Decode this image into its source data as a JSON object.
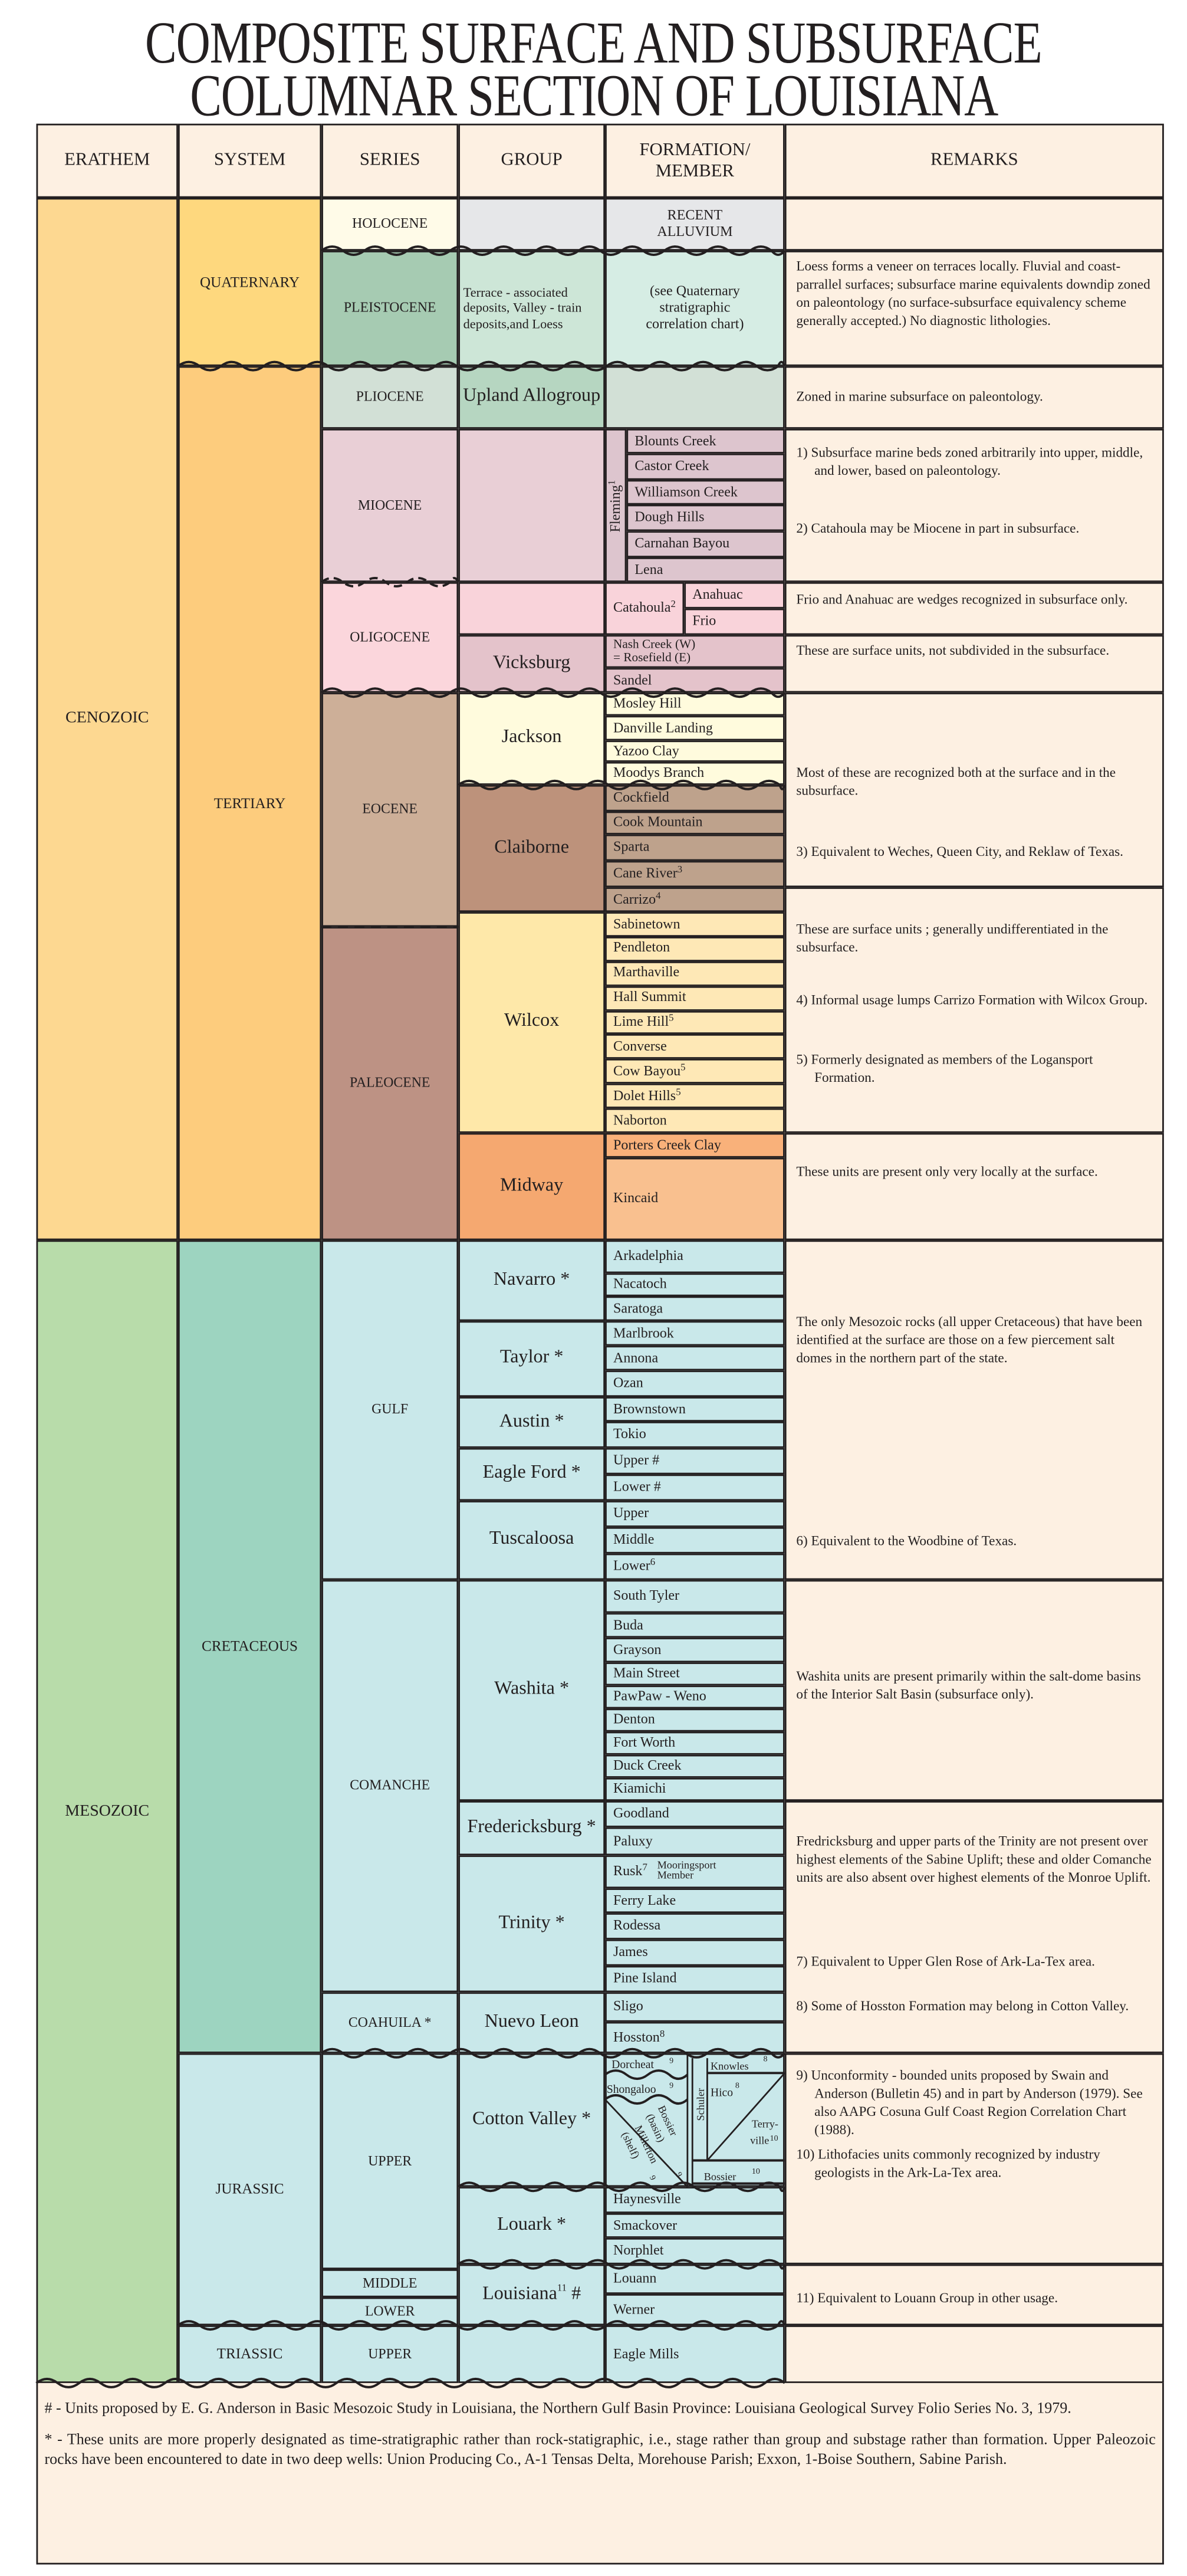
{
  "title": [
    "COMPOSITE SURFACE AND SUBSURFACE",
    "COLUMNAR SECTION OF LOUISIANA"
  ],
  "headers": [
    "ERATHEM",
    "SYSTEM",
    "SERIES",
    "GROUP",
    "FORMATION/\nMEMBER",
    "REMARKS"
  ],
  "erathem": [
    {
      "label": "CENOZOIC",
      "color": "#fdd891"
    },
    {
      "label": "MESOZOIC",
      "color": "#b8dcaa"
    }
  ],
  "system": [
    {
      "label": "QUATERNARY",
      "color": "#fed87e"
    },
    {
      "label": "TERTIARY",
      "color": "#fdcc7d"
    },
    {
      "label": "CRETACEOUS",
      "color": "#9dd4c0"
    },
    {
      "label": "JURASSIC",
      "color": "#c9e8ea"
    },
    {
      "label": "TRIASSIC",
      "color": "#c9e8ea"
    }
  ],
  "series": [
    {
      "label": "HOLOCENE",
      "color": "#fffbe8"
    },
    {
      "label": "PLEISTOCENE",
      "color": "#a6cbb2"
    },
    {
      "label": "PLIOCENE",
      "color": "#d2e0d6"
    },
    {
      "label": "MIOCENE",
      "color": "#e9cfd6"
    },
    {
      "label": "OLIGOCENE",
      "color": "#fbd6dc"
    },
    {
      "label": "EOCENE",
      "color": "#cdaf98"
    },
    {
      "label": "PALEOCENE",
      "color": "#bd9284"
    },
    {
      "label": "GULF",
      "color": "#c9e8ea"
    },
    {
      "label": "COMANCHE",
      "color": "#c9e8ea"
    },
    {
      "label": "COAHUILA *",
      "color": "#c9e8ea"
    },
    {
      "label": "UPPER",
      "color": "#c9e8ea"
    },
    {
      "label": "MIDDLE",
      "color": "#c9e8ea"
    },
    {
      "label": "LOWER",
      "color": "#c9e8ea"
    },
    {
      "label": "UPPER",
      "color": "#c9e8ea"
    }
  ],
  "group": [
    {
      "label": "",
      "color": "#e6e7e9"
    },
    {
      "label": "Terrace - associated deposits, Valley - train deposits,and Loess",
      "color": "#cde6d7"
    },
    {
      "label": "Upland Allogroup",
      "color": "#b6d6c1"
    },
    {
      "label": "",
      "color": "#e9cfd6"
    },
    {
      "label": "",
      "color": "#f9d3da"
    },
    {
      "label": "Vicksburg",
      "color": "#e4c3cb"
    },
    {
      "label": "Jackson",
      "color": "#fffbdd"
    },
    {
      "label": "Claiborne",
      "color": "#bd927b"
    },
    {
      "label": "Wilcox",
      "color": "#fee8a9"
    },
    {
      "label": "Midway",
      "color": "#f5a870"
    },
    {
      "label": "Navarro *",
      "color": "#c9e8ea"
    },
    {
      "label": "Taylor *",
      "color": "#c9e8ea"
    },
    {
      "label": "Austin *",
      "color": "#c9e8ea"
    },
    {
      "label": "Eagle Ford *",
      "color": "#c9e8ea"
    },
    {
      "label": "Tuscaloosa",
      "color": "#c9e8ea"
    },
    {
      "label": "Washita *",
      "color": "#c9e8ea"
    },
    {
      "label": "Fredericksburg *",
      "color": "#c9e8ea"
    },
    {
      "label": "Trinity *",
      "color": "#c9e8ea"
    },
    {
      "label": "Nuevo Leon",
      "color": "#c9e8ea"
    },
    {
      "label": "Cotton Valley *",
      "color": "#c9e8ea"
    },
    {
      "label": "Louark *",
      "color": "#c9e8ea"
    },
    {
      "label": "Louisiana",
      "sup": "11",
      "suffix": " #",
      "color": "#c9e8ea"
    },
    {
      "label": "",
      "color": "#c9e8ea"
    }
  ],
  "formation": [
    {
      "label": "RECENT\nALLUVIUM",
      "color": "#e6e7e9"
    },
    {
      "label": "(see Quaternary\nstratigraphic\ncorrelation chart)",
      "color": "#d6ede4"
    },
    {
      "label": "",
      "color": "#d2e0d6"
    },
    {
      "label": "Fleming",
      "sup": "1",
      "color": "#ddc5ce"
    },
    {
      "label": "Blounts Creek",
      "color": "#ddc5ce"
    },
    {
      "label": "Castor Creek",
      "color": "#ddc5ce"
    },
    {
      "label": "Williamson Creek",
      "color": "#ddc5ce"
    },
    {
      "label": "Dough Hills",
      "color": "#ddc5ce"
    },
    {
      "label": "Carnahan Bayou",
      "color": "#ddc5ce"
    },
    {
      "label": "Lena",
      "color": "#ddc5ce"
    },
    {
      "label": "Catahoula",
      "sup": "2",
      "color": "#f9d3da"
    },
    {
      "label": "Anahuac",
      "color": "#f9d3da"
    },
    {
      "label": "Frio",
      "color": "#f9d3da"
    },
    {
      "label": "Nash Creek (W)\n= Rosefield (E)",
      "color": "#e4c3cb"
    },
    {
      "label": "Sandel",
      "color": "#e4c3cb"
    },
    {
      "label": "Mosley Hill",
      "color": "#fffbdd"
    },
    {
      "label": "Danville Landing",
      "color": "#fffbdd"
    },
    {
      "label": "Yazoo Clay",
      "color": "#fffbdd"
    },
    {
      "label": "Moodys Branch",
      "color": "#fffbdd"
    },
    {
      "label": "Cockfield",
      "color": "#bea28c"
    },
    {
      "label": "Cook Mountain",
      "color": "#bea28c"
    },
    {
      "label": "Sparta",
      "color": "#bea28c"
    },
    {
      "label": "Cane River",
      "sup": "3",
      "color": "#bea28c"
    },
    {
      "label": "Carrizo",
      "sup": "4",
      "color": "#bea28c"
    },
    {
      "label": "Sabinetown",
      "color": "#fee8b6"
    },
    {
      "label": "Pendleton",
      "color": "#fee8b6"
    },
    {
      "label": "Marthaville",
      "color": "#fee8b6"
    },
    {
      "label": "Hall Summit",
      "color": "#fee8b6"
    },
    {
      "label": "Lime Hill",
      "sup": "5",
      "color": "#fee8b6"
    },
    {
      "label": "Converse",
      "color": "#fee8b6"
    },
    {
      "label": "Cow  Bayou",
      "sup": "5",
      "color": "#fee8b6"
    },
    {
      "label": "Dolet Hills",
      "sup": "5",
      "color": "#fee8b6"
    },
    {
      "label": "Naborton",
      "color": "#fee8b6"
    },
    {
      "label": "Porters Creek Clay",
      "color": "#f9b17a"
    },
    {
      "label": "Kincaid",
      "color": "#f9c08f"
    },
    {
      "label": "Arkadelphia",
      "color": "#c9e8ea"
    },
    {
      "label": "Nacatoch",
      "color": "#c9e8ea"
    },
    {
      "label": "Saratoga",
      "color": "#c9e8ea"
    },
    {
      "label": "Marlbrook",
      "color": "#c9e8ea"
    },
    {
      "label": "Annona",
      "color": "#c9e8ea"
    },
    {
      "label": "Ozan",
      "color": "#c9e8ea"
    },
    {
      "label": "Brownstown",
      "color": "#c9e8ea"
    },
    {
      "label": "Tokio",
      "color": "#c9e8ea"
    },
    {
      "label": "Upper #",
      "color": "#c9e8ea"
    },
    {
      "label": "Lower #",
      "color": "#c9e8ea"
    },
    {
      "label": "Upper",
      "color": "#c9e8ea"
    },
    {
      "label": "Middle",
      "color": "#c9e8ea"
    },
    {
      "label": "Lower",
      "sup": "6",
      "color": "#c9e8ea"
    },
    {
      "label": "South Tyler",
      "color": "#c9e8ea"
    },
    {
      "label": "Buda",
      "color": "#c9e8ea"
    },
    {
      "label": "Grayson",
      "color": "#c9e8ea"
    },
    {
      "label": "Main Street",
      "color": "#c9e8ea"
    },
    {
      "label": "PawPaw - Weno",
      "color": "#c9e8ea"
    },
    {
      "label": "Denton",
      "color": "#c9e8ea"
    },
    {
      "label": "Fort Worth",
      "color": "#c9e8ea"
    },
    {
      "label": "Duck Creek",
      "color": "#c9e8ea"
    },
    {
      "label": "Kiamichi",
      "color": "#c9e8ea"
    },
    {
      "label": "Goodland",
      "color": "#c9e8ea"
    },
    {
      "label": "Paluxy",
      "color": "#c9e8ea"
    },
    {
      "label": "Rusk",
      "sup": "7",
      "note": "Mooringsport\nMember",
      "color": "#c9e8ea"
    },
    {
      "label": "Ferry Lake",
      "color": "#c9e8ea"
    },
    {
      "label": "Rodessa",
      "color": "#c9e8ea"
    },
    {
      "label": "James",
      "color": "#c9e8ea"
    },
    {
      "label": "Pine Island",
      "color": "#c9e8ea"
    },
    {
      "label": "Sligo",
      "color": "#c9e8ea"
    },
    {
      "label": "Hosston",
      "sup": "8",
      "color": "#c9e8ea"
    },
    {
      "label": "Haynesville",
      "color": "#c9e8ea"
    },
    {
      "label": "Smackover",
      "color": "#c9e8ea"
    },
    {
      "label": "Norphlet",
      "color": "#c9e8ea"
    },
    {
      "label": "Louann",
      "color": "#c9e8ea"
    },
    {
      "label": "Werner",
      "color": "#c9e8ea"
    },
    {
      "label": "Eagle Mills",
      "color": "#c9e8ea"
    }
  ],
  "cotton_valley": {
    "color": "#c9e8ea",
    "dorcheat": "Dorcheat",
    "dorcheat_sup": "9",
    "shongaloo": "Shongaloo",
    "shongaloo_sup": "9",
    "bossier_basin": "Bossier",
    "bossier_basin_2": "(basin)",
    "bossier_basin_sup": "9",
    "millerton": "Millerton",
    "millerton_2": "(shelf)",
    "millerton_sup": "9",
    "schuler": "Schuler",
    "knowles": "Knowles",
    "knowles_sup": "8",
    "hico": "Hico",
    "hico_sup": "8",
    "terryville_1": "Terry-",
    "terryville_2": "ville",
    "terryville_sup": "10",
    "bossier": "Bossier",
    "bossier_sup": "10"
  },
  "remarks": [
    {
      "paragraphs": []
    },
    {
      "paragraphs": [
        "Loess forms a veneer on terraces locally. Fluvial and coast-parrallel surfaces; subsurface marine equivalents downdip zoned on paleontology (no surface-subsurface equivalency scheme generally accepted.) No diagnostic lithologies."
      ]
    },
    {
      "paragraphs": [
        "Zoned in marine subsurface on paleontology."
      ]
    },
    {
      "paragraphs": [
        "1) Subsurface marine beds zoned arbitrarily into upper, middle, and lower, based on paleontology.",
        "2) Catahoula may be Miocene in part in subsurface."
      ]
    },
    {
      "paragraphs": [
        "Frio and Anahuac are wedges recognized in subsurface only."
      ]
    },
    {
      "paragraphs": [
        "These are surface units, not subdivided in the subsurface."
      ]
    },
    {
      "paragraphs": [
        "Most of these are recognized both at the surface and in the subsurface.",
        "3) Equivalent to Weches, Queen City, and Reklaw of Texas."
      ]
    },
    {
      "paragraphs": [
        "These are surface units ; generally undifferentiated in the subsurface.",
        "4) Informal usage lumps Carrizo Formation with Wilcox Group.",
        "5) Formerly designated as members of the Logansport Formation."
      ]
    },
    {
      "paragraphs": [
        "These units are present only very locally at the surface."
      ]
    },
    {
      "paragraphs": [
        "The only Mesozoic rocks (all upper Cretaceous) that have been identified at the surface are those on a few piercement salt domes in the northern part of the state.",
        "6) Equivalent to the Woodbine of Texas."
      ]
    },
    {
      "paragraphs": [
        "Washita units are present primarily within the salt-dome basins of the Interior Salt Basin (subsurface only)."
      ]
    },
    {
      "paragraphs": [
        "Fredricksburg and upper parts of the Trinity are not present over highest elements of the Sabine Uplift; these and older Comanche units are also absent over highest elements of the Monroe Uplift.",
        "7) Equivalent to Upper Glen Rose of Ark-La-Tex area.",
        "8) Some of Hosston Formation may belong in Cotton Valley."
      ]
    },
    {
      "paragraphs": [
        "9) Unconformity - bounded units proposed by Swain and Anderson (Bulletin 45) and in part by Anderson (1979). See also AAPG Cosuna Gulf Coast Region Correlation Chart (1988).",
        "10) Lithofacies units commonly recognized by industry geologists in the Ark-La-Tex area."
      ]
    },
    {
      "paragraphs": [
        "11) Equivalent to Louann Group in other usage."
      ]
    },
    {
      "paragraphs": []
    }
  ],
  "remarks_color": "#fdf0e2",
  "footnotes": [
    "# - Units proposed by E. G. Anderson in Basic Mesozoic Study in Louisiana, the Northern Gulf Basin Province: Louisiana Geological Survey Folio Series No. 3, 1979.",
    "* - These units are more properly designated as time-stratigraphic rather than rock-statigraphic, i.e., stage rather than group and substage rather than formation. Upper Paleozoic rocks have been encountered to date in two deep wells: Union Producing Co., A-1 Tensas Delta, Morehouse Parish; Exxon, 1-Boise Southern, Sabine Parish."
  ]
}
